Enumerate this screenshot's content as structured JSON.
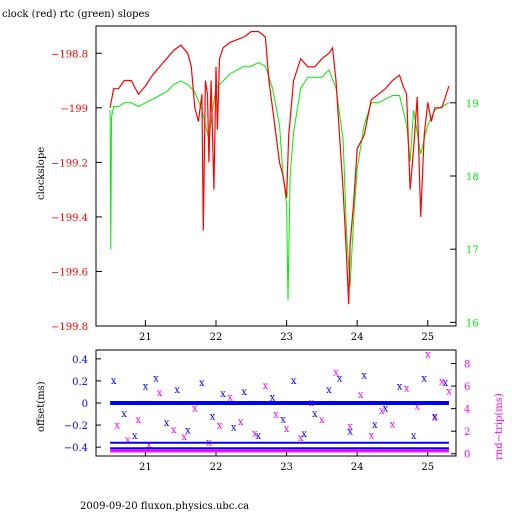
{
  "title": "clock (red) rtc (green) slopes",
  "footer": "2009-09-20 fluxon.physics.ubc.ca",
  "colors": {
    "clock": "#ff0000",
    "rtc": "#00ee00",
    "offset": "#0000ff",
    "rndtrip": "#ff00ff",
    "axis": "#000000"
  },
  "chart_data": [
    {
      "type": "line",
      "title": "clock (red) rtc (green) slopes",
      "ylabel": "clockslope",
      "y2label": "",
      "xlim": [
        20.3,
        25.4
      ],
      "ylim": [
        -199.8,
        -198.7
      ],
      "y2lim": [
        15.95,
        20.05
      ],
      "xticks": [
        21,
        22,
        23,
        24,
        25
      ],
      "yticks": [
        -198.8,
        -199,
        -199.2,
        -199.4,
        -199.6,
        -199.8
      ],
      "ytick_labels": [
        "−198.8",
        "−199",
        "−199.2",
        "−199.4",
        "−199.6",
        "−199.8"
      ],
      "y2ticks": [
        16,
        17,
        18,
        19
      ],
      "series": [
        {
          "name": "clock",
          "axis": "left",
          "x": [
            20.5,
            20.55,
            20.62,
            20.7,
            20.8,
            20.9,
            21.0,
            21.1,
            21.2,
            21.3,
            21.4,
            21.5,
            21.6,
            21.65,
            21.7,
            21.75,
            21.8,
            21.82,
            21.85,
            21.88,
            21.9,
            21.93,
            21.97,
            22.0,
            22.02,
            22.05,
            22.1,
            22.2,
            22.3,
            22.4,
            22.5,
            22.6,
            22.7,
            22.75,
            22.8,
            22.85,
            22.9,
            22.95,
            23.0,
            23.03,
            23.1,
            23.2,
            23.3,
            23.4,
            23.5,
            23.6,
            23.65,
            23.7,
            23.75,
            23.8,
            23.85,
            23.88,
            23.9,
            23.95,
            24.0,
            24.1,
            24.2,
            24.3,
            24.4,
            24.5,
            24.6,
            24.65,
            24.7,
            24.75,
            24.8,
            24.85,
            24.9,
            24.95,
            25.0,
            25.05,
            25.1,
            25.2,
            25.3
          ],
          "y": [
            -199.0,
            -198.93,
            -198.93,
            -198.9,
            -198.9,
            -198.95,
            -198.92,
            -198.88,
            -198.85,
            -198.82,
            -198.79,
            -198.77,
            -198.8,
            -198.85,
            -199.0,
            -199.05,
            -198.95,
            -199.45,
            -198.9,
            -198.95,
            -199.2,
            -198.9,
            -199.3,
            -198.85,
            -199.08,
            -198.82,
            -198.78,
            -198.76,
            -198.75,
            -198.74,
            -198.72,
            -198.72,
            -198.74,
            -198.9,
            -199.0,
            -199.1,
            -199.2,
            -199.25,
            -199.33,
            -199.1,
            -198.9,
            -198.82,
            -198.85,
            -198.85,
            -198.82,
            -198.8,
            -198.78,
            -198.9,
            -199.1,
            -199.3,
            -199.55,
            -199.72,
            -199.5,
            -199.35,
            -199.15,
            -199.1,
            -198.97,
            -198.95,
            -198.93,
            -198.9,
            -198.88,
            -198.92,
            -198.95,
            -199.3,
            -199.15,
            -198.96,
            -199.4,
            -199.1,
            -198.98,
            -199.05,
            -199.0,
            -199.0,
            -198.92
          ]
        },
        {
          "name": "rtc",
          "axis": "right",
          "x": [
            20.5,
            20.51,
            20.52,
            20.55,
            20.62,
            20.7,
            20.8,
            20.9,
            21.0,
            21.1,
            21.2,
            21.3,
            21.4,
            21.5,
            21.6,
            21.7,
            21.8,
            21.85,
            21.9,
            21.95,
            22.0,
            22.1,
            22.2,
            22.3,
            22.4,
            22.5,
            22.6,
            22.7,
            22.8,
            22.9,
            22.95,
            23.0,
            23.02,
            23.05,
            23.1,
            23.2,
            23.3,
            23.4,
            23.5,
            23.6,
            23.7,
            23.8,
            23.85,
            23.9,
            23.95,
            24.0,
            24.1,
            24.2,
            24.3,
            24.4,
            24.5,
            24.6,
            24.7,
            24.75,
            24.8,
            24.9,
            25.0,
            25.1,
            25.2,
            25.3
          ],
          "y": [
            18.9,
            17.0,
            18.8,
            18.95,
            18.95,
            19.0,
            19.0,
            18.95,
            19.0,
            19.05,
            19.1,
            19.15,
            19.25,
            19.3,
            19.25,
            19.15,
            18.9,
            18.7,
            18.5,
            18.9,
            19.2,
            19.3,
            19.4,
            19.45,
            19.5,
            19.5,
            19.55,
            19.5,
            19.2,
            18.7,
            18.0,
            17.6,
            16.3,
            18.0,
            18.6,
            19.2,
            19.35,
            19.35,
            19.35,
            19.45,
            19.2,
            18.5,
            17.2,
            16.5,
            17.4,
            18.1,
            18.7,
            19.0,
            19.0,
            19.05,
            19.1,
            19.1,
            18.7,
            18.2,
            18.9,
            18.3,
            18.7,
            18.9,
            18.95,
            19.0
          ]
        }
      ]
    },
    {
      "type": "scatter",
      "ylabel": "offset(ms)",
      "y2label": "rnd−trip(ms)",
      "xlim": [
        20.3,
        25.4
      ],
      "ylim": [
        -0.48,
        0.48
      ],
      "y2lim": [
        -0.2,
        9.2
      ],
      "xticks": [
        21,
        22,
        23,
        24,
        25
      ],
      "yticks": [
        0.4,
        0.2,
        0,
        -0.2,
        -0.4
      ],
      "ytick_labels": [
        "0.4",
        "0.2",
        "0",
        "−0.2",
        "−0.4"
      ],
      "y2ticks": [
        0,
        2,
        4,
        6,
        8
      ],
      "series": [
        {
          "name": "offset",
          "axis": "left",
          "bands": [
            0.0,
            -0.36,
            -0.41
          ],
          "x": [
            20.55,
            20.7,
            20.85,
            21.0,
            21.15,
            21.3,
            21.45,
            21.6,
            21.8,
            21.95,
            22.1,
            22.25,
            22.4,
            22.6,
            22.8,
            22.95,
            23.1,
            23.25,
            23.4,
            23.6,
            23.75,
            23.9,
            24.1,
            24.25,
            24.4,
            24.6,
            24.8,
            24.95,
            25.1,
            25.25
          ],
          "y": [
            0.2,
            -0.1,
            -0.3,
            0.15,
            0.22,
            -0.18,
            0.12,
            -0.25,
            0.18,
            -0.12,
            0.08,
            -0.22,
            0.1,
            -0.3,
            0.05,
            -0.15,
            0.2,
            -0.28,
            -0.1,
            0.12,
            0.22,
            -0.26,
            0.25,
            -0.2,
            -0.05,
            0.15,
            -0.3,
            0.22,
            -0.12,
            0.18
          ]
        },
        {
          "name": "rnd-trip",
          "axis": "right",
          "bands": [
            0.25
          ],
          "x": [
            20.6,
            20.75,
            20.9,
            21.05,
            21.2,
            21.4,
            21.55,
            21.7,
            21.9,
            22.05,
            22.2,
            22.35,
            22.55,
            22.7,
            22.85,
            23.0,
            23.2,
            23.35,
            23.5,
            23.7,
            23.9,
            24.05,
            24.2,
            24.35,
            24.5,
            24.7,
            24.85,
            25.0,
            25.1,
            25.2,
            25.3
          ],
          "y": [
            2.5,
            1.2,
            3.0,
            0.8,
            5.4,
            2.1,
            1.5,
            4.0,
            1.0,
            2.5,
            5.0,
            2.8,
            1.8,
            6.0,
            3.5,
            2.2,
            1.4,
            4.5,
            3.0,
            7.2,
            2.4,
            5.2,
            1.6,
            3.8,
            2.6,
            5.8,
            4.2,
            8.8,
            3.2,
            6.4,
            5.5
          ]
        }
      ]
    }
  ]
}
